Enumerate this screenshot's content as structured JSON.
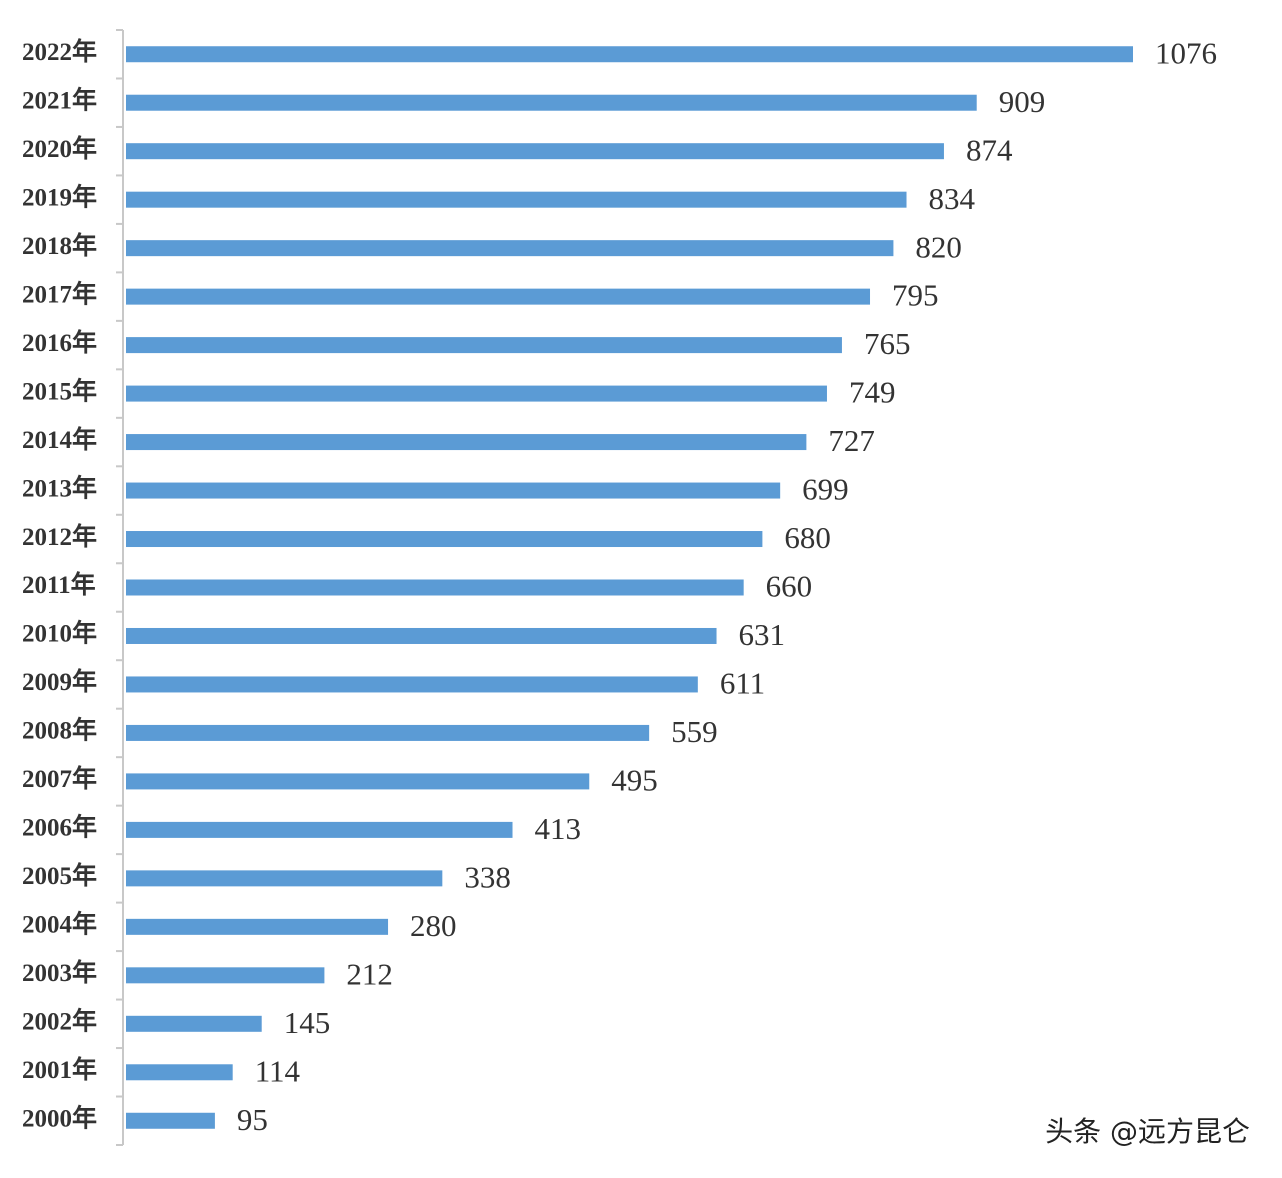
{
  "chart_data": {
    "type": "bar",
    "orientation": "horizontal",
    "color": "#5b9bd5",
    "categories": [
      "2022年",
      "2021年",
      "2020年",
      "2019年",
      "2018年",
      "2017年",
      "2016年",
      "2015年",
      "2014年",
      "2013年",
      "2012年",
      "2011年",
      "2010年",
      "2009年",
      "2008年",
      "2007年",
      "2006年",
      "2005年",
      "2004年",
      "2003年",
      "2002年",
      "2001年",
      "2000年"
    ],
    "values": [
      1076,
      909,
      874,
      834,
      820,
      795,
      765,
      749,
      727,
      699,
      680,
      660,
      631,
      611,
      559,
      495,
      413,
      338,
      280,
      212,
      145,
      114,
      95
    ],
    "watermark": "头条 @远方昆仑"
  }
}
